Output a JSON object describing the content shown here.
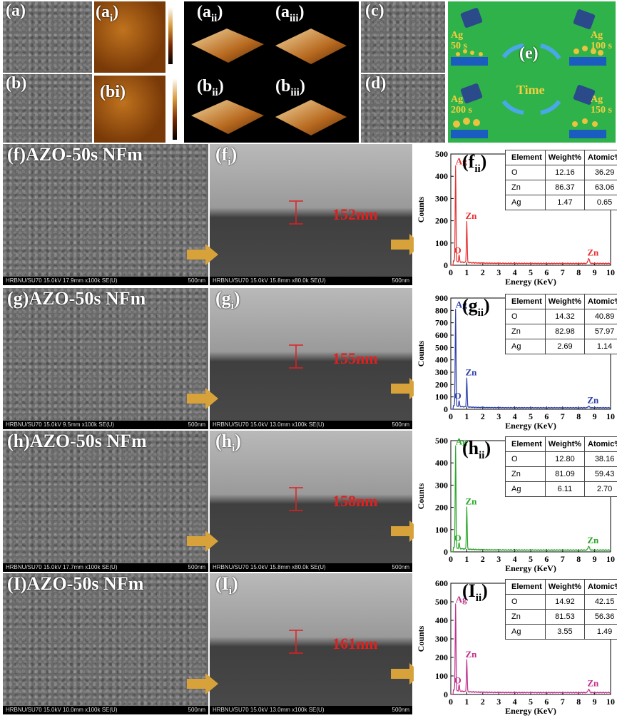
{
  "top": {
    "a": "(a)",
    "ai_base": "(a",
    "ai_sub": "i",
    "ai_close": ")",
    "aii_base": "(a",
    "aii_sub": "ii",
    "aii_close": ")",
    "aiii_base": "(a",
    "aiii_sub": "iii",
    "aiii_close": ")",
    "b": "(b)",
    "bi": "(bi)",
    "bii_base": "(b",
    "bii_sub": "ii",
    "bii_close": ")",
    "biii_base": "(b",
    "biii_sub": "iii",
    "biii_close": ")",
    "c": "(c)",
    "d": "(d)",
    "e": "(e)",
    "time": "Time",
    "ag_labels": [
      "Ag\n50 s",
      "Ag\n100 s",
      "Ag\n200 s",
      "Ag\n150 s"
    ]
  },
  "rows": [
    {
      "label": "(f)AZO-50s NFm",
      "sub_base": "(f",
      "sub_sub": "i",
      "sub_close": ")",
      "eds_base": "(f",
      "eds_sub": "ii",
      "eds_close": ")",
      "thickness": "152nm",
      "bar_left": "HRBNU/SU70 15.0kV 17.9mm x100k SE(U)",
      "bar_mid": "HRBNU/SU70 15.0kV 15.8mm x80.0k SE(U)",
      "scale": "500nm",
      "table": [
        [
          "O",
          "12.16",
          "36.29"
        ],
        [
          "Zn",
          "86.37",
          "63.06"
        ],
        [
          "Ag",
          "1.47",
          "0.65"
        ]
      ]
    },
    {
      "label": "(g)AZO-50s NFm",
      "sub_base": "(g",
      "sub_sub": "i",
      "sub_close": ")",
      "eds_base": "(g",
      "eds_sub": "ii",
      "eds_close": ")",
      "thickness": "155nm",
      "bar_left": "HRBNU/SU70 15.0kV 9.5mm x100k SE(U)",
      "bar_mid": "HRBNU/SU70 15.0kV 13.0mm x100k SE(U)",
      "scale": "500nm",
      "table": [
        [
          "O",
          "14.32",
          "40.89"
        ],
        [
          "Zn",
          "82.98",
          "57.97"
        ],
        [
          "Ag",
          "2.69",
          "1.14"
        ]
      ]
    },
    {
      "label": "(h)AZO-50s NFm",
      "sub_base": "(h",
      "sub_sub": "i",
      "sub_close": ")",
      "eds_base": "(h",
      "eds_sub": "ii",
      "eds_close": ")",
      "thickness": "158nm",
      "bar_left": "HRBNU/SU70 15.0kV 17.7mm x100k SE(U)",
      "bar_mid": "HRBNU/SU70 15.0kV 15.8mm x80.0k SE(U)",
      "scale": "500nm",
      "table": [
        [
          "O",
          "12.80",
          "38.16"
        ],
        [
          "Zn",
          "81.09",
          "59.43"
        ],
        [
          "Ag",
          "6.11",
          "2.70"
        ]
      ]
    },
    {
      "label": "(I)AZO-50s NFm",
      "sub_base": "(I",
      "sub_sub": "i",
      "sub_close": ")",
      "eds_base": "(I",
      "eds_sub": "ii",
      "eds_close": ")",
      "thickness": "161nm",
      "bar_left": "HRBNU/SU70 15.0kV 10.0mm x100k SE(U)",
      "bar_mid": "HRBNU/SU70 15.0kV 13.0mm x100k SE(U)",
      "scale": "500nm",
      "table": [
        [
          "O",
          "14.92",
          "42.15"
        ],
        [
          "Zn",
          "81.53",
          "56.36"
        ],
        [
          "Ag",
          "3.55",
          "1.49"
        ]
      ]
    }
  ],
  "table_headers": [
    "Element",
    "Weight%",
    "Atomic%"
  ],
  "chart_data": [
    {
      "type": "line",
      "color": "#e53030",
      "xlabel": "Energy (KeV)",
      "ylabel": "Counts",
      "xlim": [
        0,
        10
      ],
      "ylim": [
        0,
        500
      ],
      "yticks": [
        0,
        100,
        200,
        300,
        400,
        500
      ],
      "xticks": [
        0,
        1,
        2,
        3,
        4,
        5,
        6,
        7,
        8,
        9,
        10
      ],
      "peaks": [
        {
          "x": 0.3,
          "y": 440,
          "label": "Ag"
        },
        {
          "x": 0.52,
          "y": 40,
          "label": "O"
        },
        {
          "x": 1.0,
          "y": 195,
          "label": "Zn"
        },
        {
          "x": 8.63,
          "y": 30,
          "label": "Zn"
        }
      ],
      "baseline": 8
    },
    {
      "type": "line",
      "color": "#2c3fa8",
      "xlabel": "Energy (KeV)",
      "ylabel": "Counts",
      "xlim": [
        0,
        10
      ],
      "ylim": [
        0,
        900
      ],
      "yticks": [
        0,
        100,
        200,
        300,
        400,
        500,
        600,
        700,
        800,
        900
      ],
      "xticks": [
        0,
        1,
        2,
        3,
        4,
        5,
        6,
        7,
        8,
        9,
        10
      ],
      "peaks": [
        {
          "x": 0.3,
          "y": 800,
          "label": "Ag"
        },
        {
          "x": 0.52,
          "y": 60,
          "label": "O"
        },
        {
          "x": 1.0,
          "y": 250,
          "label": "Zn"
        },
        {
          "x": 8.63,
          "y": 25,
          "label": "Zn"
        }
      ],
      "baseline": 12
    },
    {
      "type": "line",
      "color": "#2aa62a",
      "xlabel": "Energy (KeV)",
      "ylabel": "Counts",
      "xlim": [
        0,
        10
      ],
      "ylim": [
        0,
        500
      ],
      "yticks": [
        0,
        100,
        200,
        300,
        400,
        500
      ],
      "xticks": [
        0,
        1,
        2,
        3,
        4,
        5,
        6,
        7,
        8,
        9,
        10
      ],
      "peaks": [
        {
          "x": 0.3,
          "y": 470,
          "label": "Ag"
        },
        {
          "x": 0.52,
          "y": 35,
          "label": "O"
        },
        {
          "x": 1.0,
          "y": 200,
          "label": "Zn"
        },
        {
          "x": 8.63,
          "y": 25,
          "label": "Zn"
        }
      ],
      "baseline": 8
    },
    {
      "type": "line",
      "color": "#c0308a",
      "xlabel": "Energy (KeV)",
      "ylabel": "Counts",
      "xlim": [
        0,
        10
      ],
      "ylim": [
        0,
        600
      ],
      "yticks": [
        0,
        100,
        200,
        300,
        400,
        500,
        600
      ],
      "xticks": [
        0,
        1,
        2,
        3,
        4,
        5,
        6,
        7,
        8,
        9,
        10
      ],
      "peaks": [
        {
          "x": 0.3,
          "y": 480,
          "label": "Ag"
        },
        {
          "x": 0.52,
          "y": 45,
          "label": "O"
        },
        {
          "x": 1.0,
          "y": 185,
          "label": "Zn"
        },
        {
          "x": 8.63,
          "y": 28,
          "label": "Zn"
        }
      ],
      "baseline": 10
    }
  ]
}
